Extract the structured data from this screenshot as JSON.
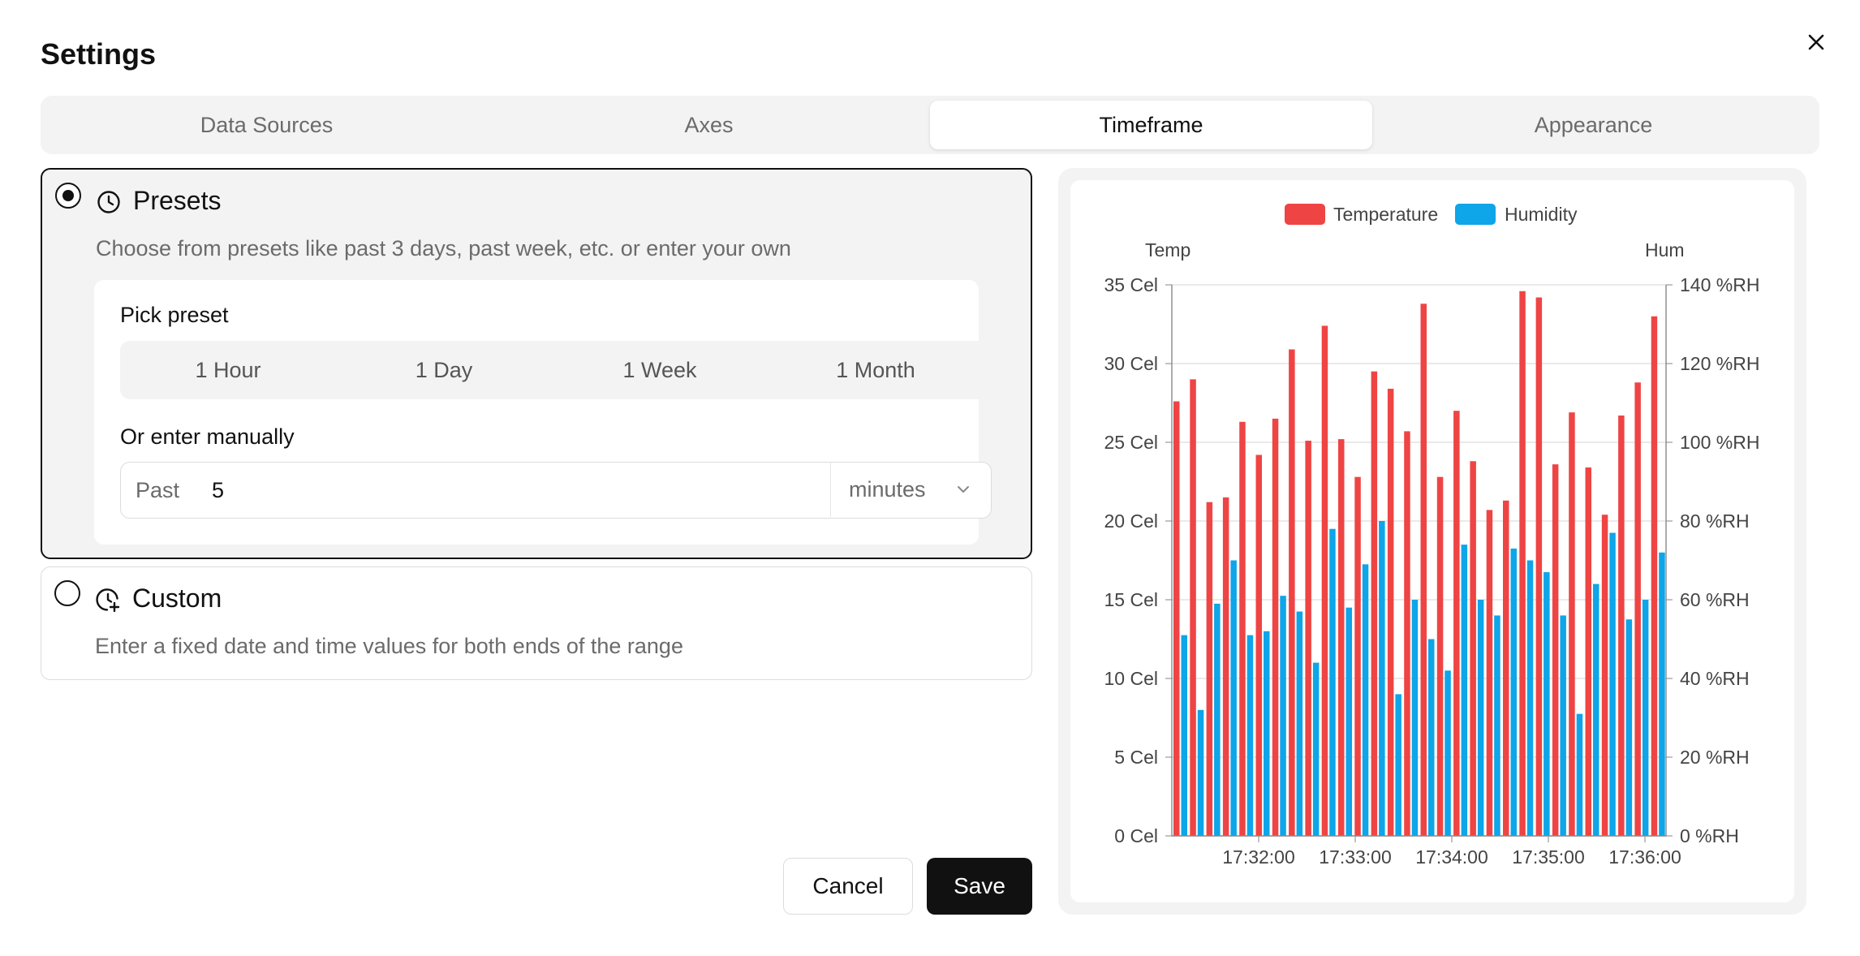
{
  "dialog": {
    "title": "Settings"
  },
  "tabs": [
    {
      "label": "Data Sources",
      "active": false
    },
    {
      "label": "Axes",
      "active": false
    },
    {
      "label": "Timeframe",
      "active": true
    },
    {
      "label": "Appearance",
      "active": false
    }
  ],
  "presets": {
    "title": "Presets",
    "description": "Choose from presets like past 3 days, past week, etc. or enter your own",
    "selected": true,
    "pick_label": "Pick preset",
    "options": [
      "1 Hour",
      "1 Day",
      "1 Week",
      "1 Month"
    ],
    "manual_label": "Or enter manually",
    "past_label": "Past",
    "past_value": "5",
    "unit": "minutes"
  },
  "custom": {
    "title": "Custom",
    "description": "Enter a fixed date and time values for both ends of the range",
    "selected": false
  },
  "actions": {
    "cancel": "Cancel",
    "save": "Save"
  },
  "colors": {
    "temperature": "#ef4444",
    "humidity": "#0ea5e9"
  },
  "chart_data": {
    "type": "bar",
    "title": "",
    "legend": [
      "Temperature",
      "Humidity"
    ],
    "legend_position": "top",
    "y_left": {
      "label": "Temp",
      "unit": "Cel",
      "ticks": [
        0,
        5,
        10,
        15,
        20,
        25,
        30,
        35
      ],
      "range": [
        0,
        35
      ]
    },
    "y_right": {
      "label": "Hum",
      "unit": "%RH",
      "ticks": [
        0,
        20,
        40,
        60,
        80,
        100,
        120,
        140
      ],
      "range": [
        0,
        140
      ]
    },
    "x_ticks": [
      "17:32:00",
      "17:33:00",
      "17:34:00",
      "17:35:00",
      "17:36:00"
    ],
    "grid": true,
    "series": [
      {
        "name": "Temperature",
        "axis": "left",
        "values": [
          27.6,
          29.0,
          21.2,
          21.5,
          26.3,
          24.2,
          26.5,
          30.9,
          25.1,
          32.4,
          25.2,
          22.8,
          29.5,
          28.4,
          25.7,
          33.8,
          22.8,
          27.0,
          23.8,
          20.7,
          21.3,
          34.6,
          34.2,
          23.6,
          26.9,
          23.4,
          20.4,
          26.7,
          28.8,
          33.0
        ]
      },
      {
        "name": "Humidity",
        "axis": "right",
        "values": [
          51,
          32,
          59,
          70,
          51,
          52,
          61,
          57,
          44,
          78,
          58,
          69,
          80,
          36,
          60,
          50,
          42,
          74,
          60,
          56,
          73,
          70,
          67,
          56,
          31,
          64,
          77,
          55,
          60,
          72
        ]
      }
    ]
  }
}
